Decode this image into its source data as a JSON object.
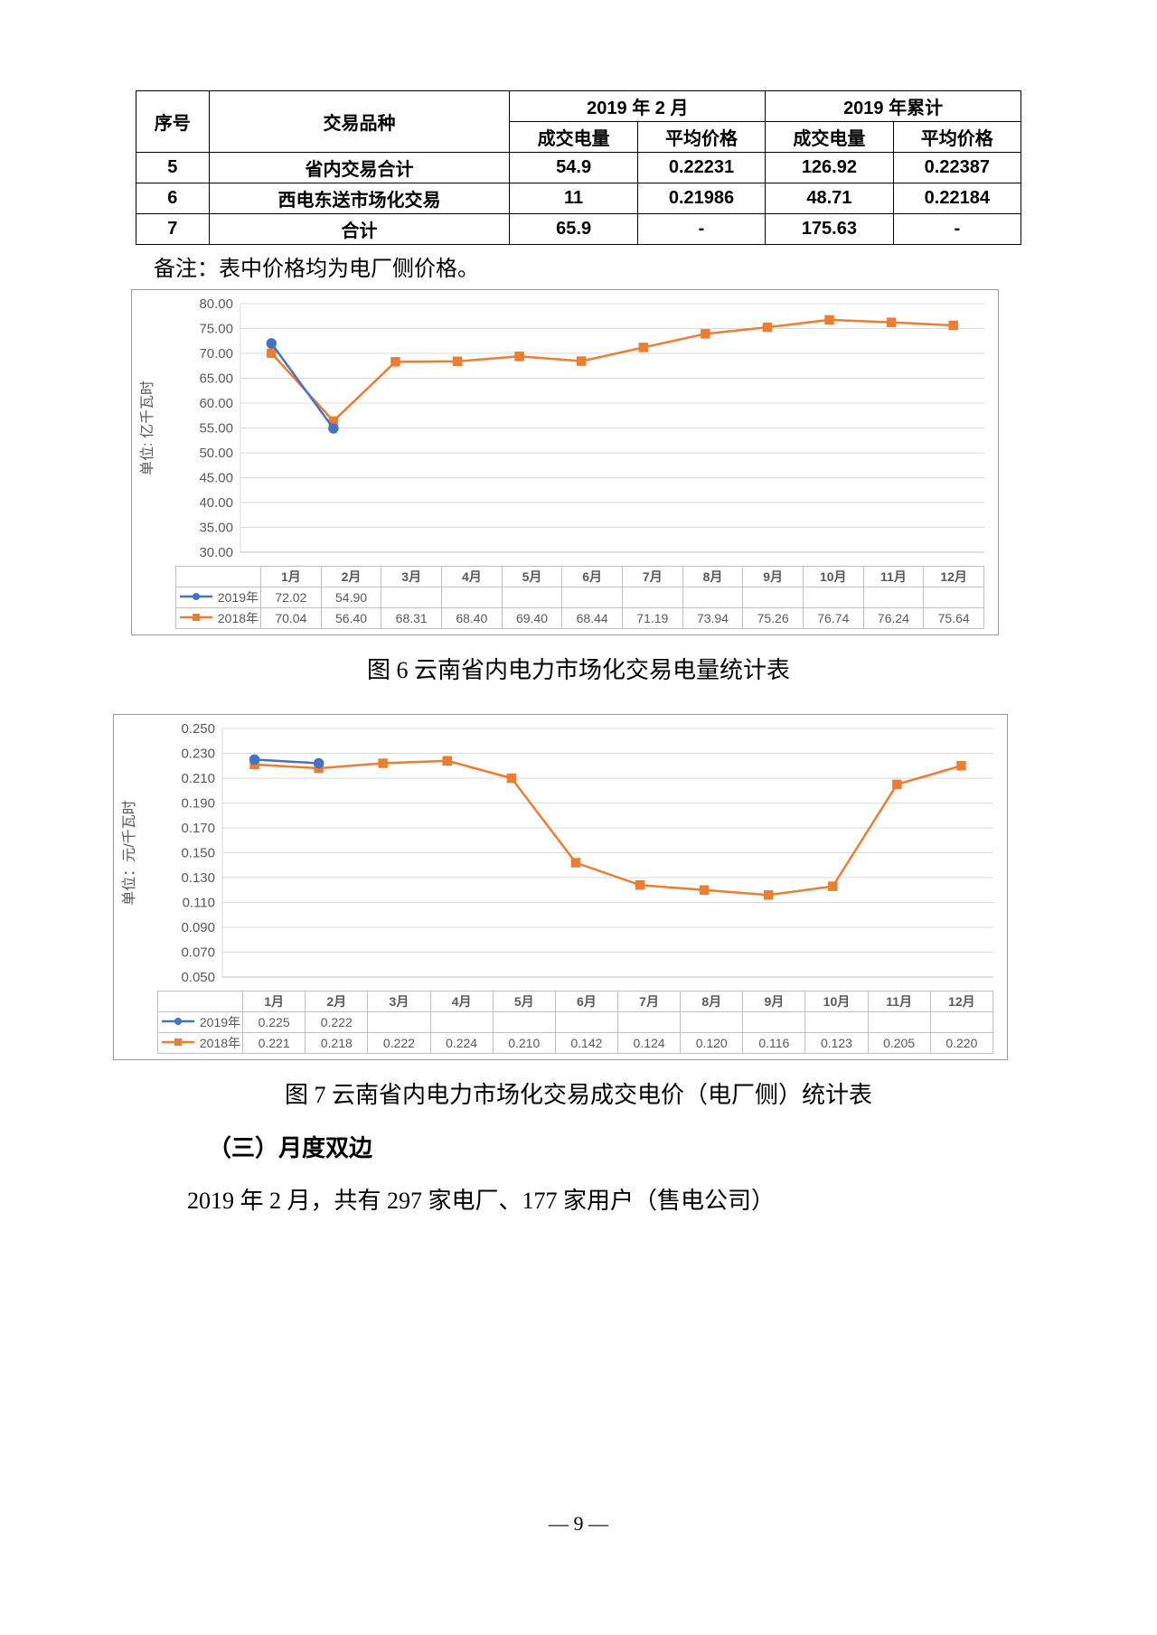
{
  "table": {
    "head": {
      "c0": "序号",
      "c1": "交易品种",
      "g1": "2019 年 2 月",
      "g2": "2019 年累计",
      "s1": "成交电量",
      "s2": "平均价格",
      "s3": "成交电量",
      "s4": "平均价格"
    },
    "rows": [
      {
        "n": "5",
        "name": "省内交易合计",
        "v1": "54.9",
        "v2": "0.22231",
        "v3": "126.92",
        "v4": "0.22387"
      },
      {
        "n": "6",
        "name": "西电东送市场化交易",
        "v1": "11",
        "v2": "0.21986",
        "v3": "48.71",
        "v4": "0.22184"
      },
      {
        "n": "7",
        "name": "合计",
        "v1": "65.9",
        "v2": "-",
        "v3": "175.63",
        "v4": "-"
      }
    ]
  },
  "note": "备注：表中价格均为电厂侧价格。",
  "chart1": {
    "ylabel": "单位: 亿千瓦时",
    "months": [
      "1月",
      "2月",
      "3月",
      "4月",
      "5月",
      "6月",
      "7月",
      "8月",
      "9月",
      "10月",
      "11月",
      "12月"
    ],
    "yticks": [
      30,
      35,
      40,
      45,
      50,
      55,
      60,
      65,
      70,
      75,
      80
    ],
    "series": {
      "s2019": {
        "label": "2019年",
        "color": "#4472c4",
        "marker": "circle",
        "values": [
          72.02,
          54.9,
          null,
          null,
          null,
          null,
          null,
          null,
          null,
          null,
          null,
          null
        ]
      },
      "s2018": {
        "label": "2018年",
        "color": "#ed7d31",
        "marker": "square",
        "values": [
          70.04,
          56.4,
          68.31,
          68.4,
          69.4,
          68.44,
          71.19,
          73.94,
          75.26,
          76.74,
          76.24,
          75.64
        ]
      }
    },
    "plot": {
      "background": "#ffffff",
      "grid_color": "#d9d9d9",
      "border_color": "#999999",
      "line_width": 2.5,
      "marker_size": 5
    }
  },
  "caption1": "图 6   云南省内电力市场化交易电量统计表",
  "chart2": {
    "ylabel": "单位：元/千瓦时",
    "months": [
      "1月",
      "2月",
      "3月",
      "4月",
      "5月",
      "6月",
      "7月",
      "8月",
      "9月",
      "10月",
      "11月",
      "12月"
    ],
    "yticks": [
      0.05,
      0.07,
      0.09,
      0.11,
      0.13,
      0.15,
      0.17,
      0.19,
      0.21,
      0.23,
      0.25
    ],
    "series": {
      "s2019": {
        "label": "2019年",
        "color": "#4472c4",
        "marker": "circle",
        "values": [
          0.225,
          0.222,
          null,
          null,
          null,
          null,
          null,
          null,
          null,
          null,
          null,
          null
        ]
      },
      "s2018": {
        "label": "2018年",
        "color": "#ed7d31",
        "marker": "square",
        "values": [
          0.221,
          0.218,
          0.222,
          0.224,
          0.21,
          0.142,
          0.124,
          0.12,
          0.116,
          0.123,
          0.205,
          0.22
        ]
      }
    },
    "plot": {
      "background": "#ffffff",
      "grid_color": "#d9d9d9",
      "border_color": "#999999",
      "line_width": 2.5,
      "marker_size": 5
    }
  },
  "caption2": "图 7   云南省内电力市场化交易成交电价（电厂侧）统计表",
  "subhead": "（三）月度双边",
  "body": "2019 年 2 月，共有 297 家电厂、177 家用户（售电公司）",
  "pagenum": "— 9 —"
}
